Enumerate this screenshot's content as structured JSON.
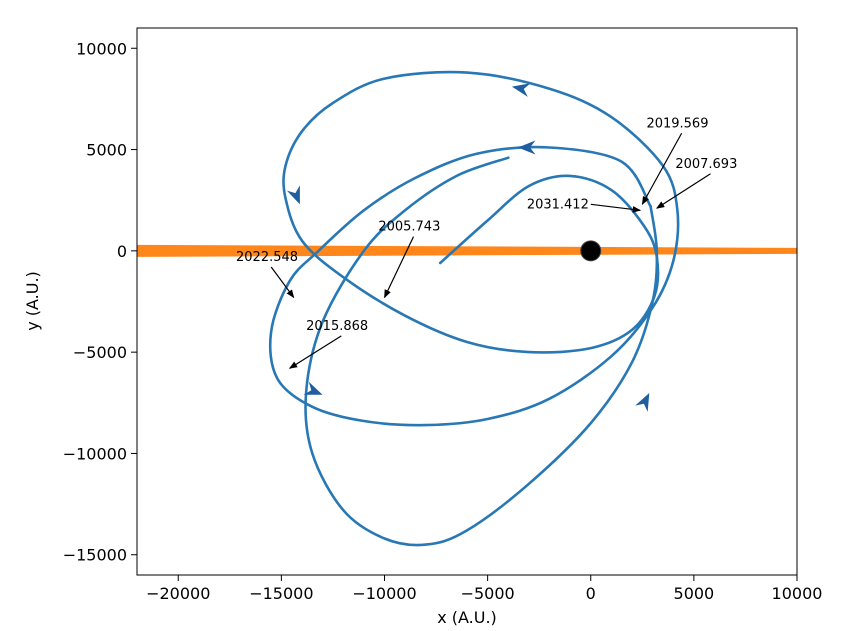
{
  "chart_data": {
    "type": "line",
    "xlabel": "x (A.U.)",
    "ylabel": "y (A.U.)",
    "xlim": [
      -22000,
      10000
    ],
    "ylim": [
      -16000,
      11000
    ],
    "xticks": [
      -20000,
      -15000,
      -10000,
      -5000,
      0,
      5000,
      10000
    ],
    "xtick_labels": [
      "−20000",
      "−15000",
      "−10000",
      "−5000",
      "0",
      "5000",
      "10000"
    ],
    "yticks": [
      10000,
      5000,
      0,
      -5000,
      -10000,
      -15000
    ],
    "ytick_labels": [
      "10000",
      "5000",
      "0",
      "−5000",
      "−10000",
      "−15000"
    ],
    "grid": false,
    "legend": "none",
    "colors": {
      "orbit": "#2878b5",
      "arrow": "#1f5fa0",
      "band": "#ff7f0e",
      "star": "#000000"
    },
    "series": [
      {
        "x": [
          -7300,
          -5000,
          -3000,
          -1000,
          1000,
          2600,
          3200,
          3100,
          2000,
          0,
          -3000,
          -6000,
          -9000,
          -12000,
          -14000,
          -14800,
          -14800,
          -14000,
          -12500,
          -10000,
          -6000,
          -2000,
          1000,
          3500,
          4200,
          4000,
          3000,
          1000,
          -2000,
          -5000,
          -8000,
          -11000,
          -13500,
          -15200,
          -15500,
          -14600,
          -13200,
          -11000,
          -8500,
          -5500,
          -2000,
          1500,
          2900
        ],
        "y": [
          -600,
          1500,
          3200,
          3700,
          3000,
          1200,
          -300,
          -2200,
          -3900,
          -4800,
          -5000,
          -4500,
          -3200,
          -1300,
          500,
          2600,
          4200,
          5900,
          7300,
          8500,
          8800,
          8000,
          6600,
          4200,
          2000,
          -500,
          -2800,
          -5200,
          -7300,
          -8300,
          -8600,
          -8400,
          -7700,
          -6300,
          -4000,
          -1500,
          0,
          2000,
          3600,
          4800,
          5100,
          4400,
          2200
        ]
      },
      {
        "x": [
          2900,
          3200,
          3000,
          2000,
          0,
          -3000,
          -6000,
          -8000,
          -10000,
          -12000,
          -13500,
          -13800,
          -13000,
          -11000,
          -9000,
          -6500,
          -4000
        ],
        "y": [
          2200,
          0,
          -2500,
          -5500,
          -8500,
          -11500,
          -13800,
          -14500,
          -14200,
          -12800,
          -10000,
          -7000,
          -3500,
          0,
          2000,
          3700,
          4600
        ]
      }
    ],
    "series_style": "orbit",
    "direction_arrows": [
      {
        "x": -3000,
        "y": 5100,
        "dx": -1,
        "dy": 0
      },
      {
        "x": -3300,
        "y": 8000,
        "dx": -1,
        "dy": 0.2
      },
      {
        "x": -14300,
        "y": 2800,
        "dx": 0.4,
        "dy": -1
      },
      {
        "x": -13500,
        "y": -6900,
        "dx": 1,
        "dy": -0.4
      },
      {
        "x": 2600,
        "y": -7500,
        "dx": 0.5,
        "dy": 1
      }
    ],
    "central_body": {
      "x": 0,
      "y": 0
    },
    "band": {
      "x_start": -22000,
      "x_end": 10000,
      "y_start": 0,
      "y_end": 0
    },
    "annotations": [
      {
        "text": "2019.569",
        "text_x": 2700,
        "text_y": 6100,
        "point_x": 2500,
        "point_y": 2300
      },
      {
        "text": "2007.693",
        "text_x": 4100,
        "text_y": 4100,
        "point_x": 3200,
        "point_y": 2100
      },
      {
        "text": "2031.412",
        "text_x": -3100,
        "text_y": 2100,
        "point_x": 2400,
        "point_y": 2000
      },
      {
        "text": "2005.743",
        "text_x": -10300,
        "text_y": 1000,
        "point_x": -10000,
        "point_y": -2300
      },
      {
        "text": "2022.548",
        "text_x": -17200,
        "text_y": -500,
        "point_x": -14400,
        "point_y": -2300
      },
      {
        "text": "2015.868",
        "text_x": -13800,
        "text_y": -3900,
        "point_x": -14600,
        "point_y": -5800
      }
    ]
  }
}
